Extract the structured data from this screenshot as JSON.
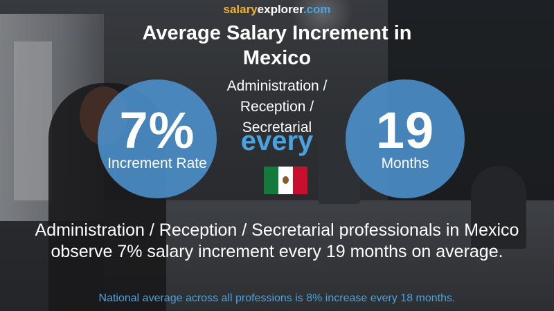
{
  "site": {
    "part1": "salary",
    "part2": "explorer",
    "part3": ".com"
  },
  "title": "Average Salary Increment in Mexico",
  "subtitle": "Administration / Reception / Secretarial",
  "increment": {
    "value": "7%",
    "label": "Increment Rate"
  },
  "connector": "every",
  "period": {
    "value": "19",
    "label": "Months"
  },
  "flag": {
    "country": "Mexico",
    "icon": "mexico-flag-icon",
    "colors": [
      "#137a3b",
      "#ffffff",
      "#c8102e"
    ]
  },
  "description": "Administration / Reception / Secretarial professionals in Mexico observe 7% salary increment every 19 months on average.",
  "national_note": "National average across all professions is 8% increase every 18 months.",
  "colors": {
    "accent_blue": "#4aa3df",
    "brand_orange": "#f2b234",
    "circle_fill": "#4c92ce"
  }
}
